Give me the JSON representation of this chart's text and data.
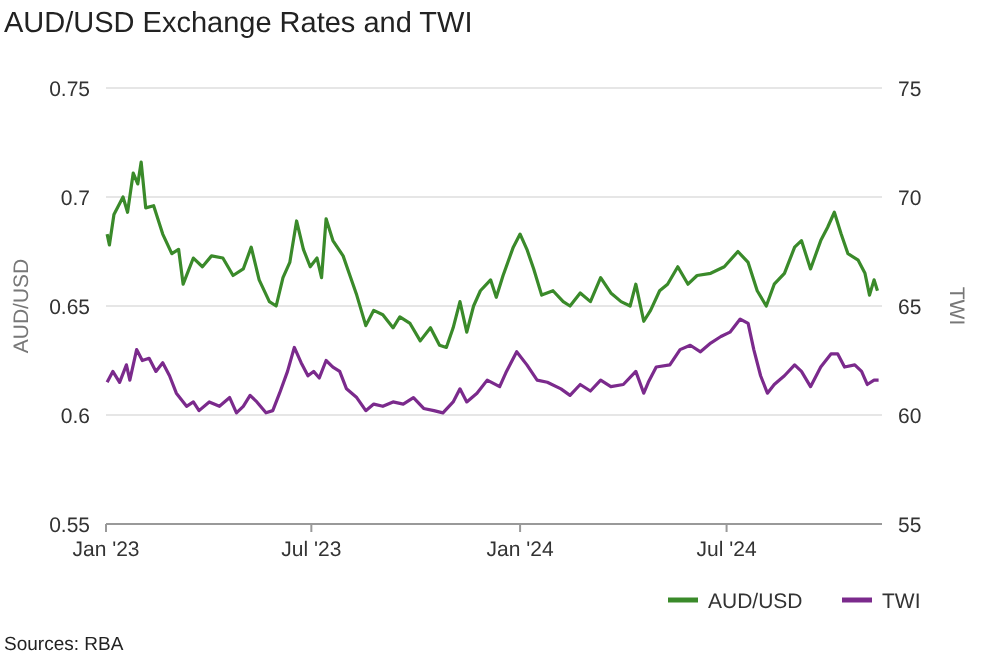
{
  "chart_data": {
    "type": "line",
    "title": "AUD/USD Exchange Rates and TWI",
    "ylabel": "AUD/USD",
    "y2label": "TWI",
    "annotations": [
      "Sources: RBA"
    ],
    "xlim": [
      "2023-01-01",
      "2024-11-15"
    ],
    "xticks": [
      {
        "value": "2023-01-01",
        "label": "Jan '23"
      },
      {
        "value": "2023-07-01",
        "label": "Jul '23"
      },
      {
        "value": "2024-01-01",
        "label": "Jan '24"
      },
      {
        "value": "2024-07-01",
        "label": "Jul '24"
      }
    ],
    "ylim": [
      0.55,
      0.75
    ],
    "yticks": [
      0.55,
      0.6,
      0.65,
      0.7,
      0.75
    ],
    "y2lim": [
      55,
      75
    ],
    "y2ticks": [
      55,
      60,
      65,
      70,
      75
    ],
    "grid": "y",
    "legend": "bottom right",
    "line_style": "solid",
    "series": [
      {
        "name": "AUD/USD",
        "color": "#3a8a2a",
        "x": [
          "2023-01-02",
          "2023-01-04",
          "2023-01-08",
          "2023-01-16",
          "2023-01-20",
          "2023-01-25",
          "2023-01-29",
          "2023-02-01",
          "2023-02-05",
          "2023-02-12",
          "2023-02-20",
          "2023-02-28",
          "2023-03-06",
          "2023-03-10",
          "2023-03-19",
          "2023-03-27",
          "2023-04-04",
          "2023-04-14",
          "2023-04-23",
          "2023-05-02",
          "2023-05-09",
          "2023-05-16",
          "2023-05-25",
          "2023-05-31",
          "2023-06-06",
          "2023-06-12",
          "2023-06-18",
          "2023-06-24",
          "2023-06-30",
          "2023-07-06",
          "2023-07-10",
          "2023-07-14",
          "2023-07-20",
          "2023-07-29",
          "2023-08-04",
          "2023-08-10",
          "2023-08-18",
          "2023-08-25",
          "2023-09-02",
          "2023-09-11",
          "2023-09-17",
          "2023-09-26",
          "2023-10-05",
          "2023-10-14",
          "2023-10-22",
          "2023-10-28",
          "2023-11-03",
          "2023-11-09",
          "2023-11-15",
          "2023-11-21",
          "2023-11-27",
          "2023-12-06",
          "2023-12-11",
          "2023-12-17",
          "2023-12-26",
          "2024-01-01",
          "2024-01-07",
          "2024-01-13",
          "2024-01-20",
          "2024-01-30",
          "2024-02-08",
          "2024-02-14",
          "2024-02-23",
          "2024-03-03",
          "2024-03-12",
          "2024-03-21",
          "2024-03-30",
          "2024-04-07",
          "2024-04-12",
          "2024-04-19",
          "2024-04-25",
          "2024-05-03",
          "2024-05-10",
          "2024-05-19",
          "2024-05-28",
          "2024-06-05",
          "2024-06-17",
          "2024-06-29",
          "2024-07-11",
          "2024-07-20",
          "2024-07-28",
          "2024-08-05",
          "2024-08-12",
          "2024-08-21",
          "2024-08-30",
          "2024-09-05",
          "2024-09-13",
          "2024-09-22",
          "2024-09-28",
          "2024-10-04",
          "2024-10-10",
          "2024-10-16",
          "2024-10-25",
          "2024-10-31",
          "2024-11-04",
          "2024-11-08",
          "2024-11-11"
        ],
        "values": [
          0.683,
          0.678,
          0.692,
          0.7,
          0.693,
          0.711,
          0.706,
          0.716,
          0.695,
          0.696,
          0.683,
          0.674,
          0.676,
          0.66,
          0.672,
          0.668,
          0.673,
          0.672,
          0.664,
          0.667,
          0.677,
          0.662,
          0.652,
          0.65,
          0.663,
          0.67,
          0.689,
          0.676,
          0.668,
          0.672,
          0.663,
          0.69,
          0.68,
          0.673,
          0.664,
          0.655,
          0.641,
          0.648,
          0.646,
          0.64,
          0.645,
          0.642,
          0.634,
          0.64,
          0.632,
          0.631,
          0.64,
          0.652,
          0.638,
          0.65,
          0.657,
          0.662,
          0.654,
          0.664,
          0.677,
          0.683,
          0.676,
          0.667,
          0.655,
          0.657,
          0.652,
          0.65,
          0.656,
          0.652,
          0.663,
          0.656,
          0.652,
          0.65,
          0.66,
          0.643,
          0.648,
          0.657,
          0.66,
          0.668,
          0.66,
          0.664,
          0.665,
          0.668,
          0.675,
          0.67,
          0.657,
          0.65,
          0.66,
          0.665,
          0.677,
          0.68,
          0.667,
          0.68,
          0.686,
          0.693,
          0.683,
          0.674,
          0.671,
          0.665,
          0.655,
          0.662,
          0.657
        ]
      },
      {
        "name": "TWI",
        "color": "#7b2a8c",
        "axis": "y2",
        "x": [
          "2023-01-02",
          "2023-01-07",
          "2023-01-13",
          "2023-01-19",
          "2023-01-22",
          "2023-01-28",
          "2023-02-02",
          "2023-02-08",
          "2023-02-14",
          "2023-02-20",
          "2023-02-26",
          "2023-03-04",
          "2023-03-13",
          "2023-03-19",
          "2023-03-24",
          "2023-04-02",
          "2023-04-11",
          "2023-04-20",
          "2023-04-26",
          "2023-05-02",
          "2023-05-08",
          "2023-05-14",
          "2023-05-22",
          "2023-05-28",
          "2023-06-03",
          "2023-06-10",
          "2023-06-16",
          "2023-06-22",
          "2023-06-28",
          "2023-07-03",
          "2023-07-08",
          "2023-07-14",
          "2023-07-20",
          "2023-07-26",
          "2023-08-01",
          "2023-08-10",
          "2023-08-18",
          "2023-08-25",
          "2023-09-02",
          "2023-09-11",
          "2023-09-20",
          "2023-09-29",
          "2023-10-08",
          "2023-10-17",
          "2023-10-25",
          "2023-11-03",
          "2023-11-09",
          "2023-11-15",
          "2023-11-24",
          "2023-12-03",
          "2023-12-14",
          "2023-12-20",
          "2023-12-29",
          "2024-01-07",
          "2024-01-16",
          "2024-01-25",
          "2024-02-06",
          "2024-02-14",
          "2024-02-23",
          "2024-03-03",
          "2024-03-12",
          "2024-03-21",
          "2024-04-01",
          "2024-04-12",
          "2024-04-19",
          "2024-04-23",
          "2024-04-30",
          "2024-05-12",
          "2024-05-21",
          "2024-05-30",
          "2024-06-08",
          "2024-06-17",
          "2024-06-26",
          "2024-07-04",
          "2024-07-13",
          "2024-07-20",
          "2024-07-25",
          "2024-07-31",
          "2024-08-06",
          "2024-08-12",
          "2024-08-21",
          "2024-08-30",
          "2024-09-05",
          "2024-09-13",
          "2024-09-22",
          "2024-10-01",
          "2024-10-07",
          "2024-10-13",
          "2024-10-22",
          "2024-10-28",
          "2024-11-02",
          "2024-11-08",
          "2024-11-12"
        ],
        "values": [
          61.5,
          62.0,
          61.5,
          62.3,
          61.6,
          63.0,
          62.5,
          62.6,
          62.0,
          62.4,
          61.8,
          61.0,
          60.4,
          60.6,
          60.2,
          60.6,
          60.4,
          60.8,
          60.1,
          60.4,
          60.9,
          60.6,
          60.1,
          60.2,
          61.0,
          62.0,
          63.1,
          62.4,
          61.8,
          62.0,
          61.7,
          62.5,
          62.2,
          62.0,
          61.2,
          60.8,
          60.2,
          60.5,
          60.4,
          60.6,
          60.5,
          60.8,
          60.3,
          60.2,
          60.1,
          60.6,
          61.2,
          60.6,
          61.0,
          61.6,
          61.3,
          62.0,
          62.9,
          62.3,
          61.6,
          61.5,
          61.2,
          60.9,
          61.4,
          61.1,
          61.6,
          61.3,
          61.4,
          62.0,
          61.0,
          61.5,
          62.2,
          62.3,
          63.0,
          63.2,
          62.9,
          63.3,
          63.6,
          63.8,
          64.4,
          64.2,
          63.0,
          61.8,
          61.0,
          61.4,
          61.8,
          62.3,
          62.0,
          61.3,
          62.2,
          62.8,
          62.8,
          62.2,
          62.3,
          62.0,
          61.4,
          61.6,
          61.6
        ]
      }
    ]
  }
}
